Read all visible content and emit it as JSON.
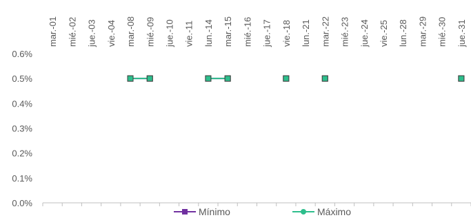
{
  "chart_data": {
    "type": "line",
    "categories": [
      "mar.-01",
      "mié.-02",
      "jue.-03",
      "vie.-04",
      "mar.-08",
      "mié.-09",
      "jue.-10",
      "vie.-11",
      "lun.-14",
      "mar.-15",
      "mié.-16",
      "jue.-17",
      "vie.-18",
      "lun.-21",
      "mar.-22",
      "mié.-23",
      "jue.-24",
      "vie.-25",
      "lun.-28",
      "mar.-29",
      "mié.-30",
      "jue.-31"
    ],
    "ylim": [
      0,
      0.6
    ],
    "yticks": [
      "0.0%",
      "0.1%",
      "0.2%",
      "0.3%",
      "0.4%",
      "0.5%",
      "0.6%"
    ],
    "ytick_values": [
      0,
      0.1,
      0.2,
      0.3,
      0.4,
      0.5,
      0.6
    ],
    "series": [
      {
        "name": "Mínimo",
        "color": "#7030A0",
        "marker": "square",
        "values": [
          null,
          null,
          null,
          null,
          0.5,
          0.5,
          null,
          null,
          0.5,
          0.5,
          null,
          null,
          0.5,
          null,
          0.5,
          null,
          null,
          null,
          null,
          null,
          null,
          0.5
        ]
      },
      {
        "name": "Máximo",
        "color": "#2DBE8C",
        "marker": "square",
        "values": [
          null,
          null,
          null,
          null,
          0.5,
          0.5,
          null,
          null,
          0.5,
          0.5,
          null,
          null,
          0.5,
          null,
          0.5,
          null,
          null,
          null,
          null,
          null,
          null,
          0.5
        ]
      }
    ],
    "legend_position": "bottom",
    "grid": false
  }
}
